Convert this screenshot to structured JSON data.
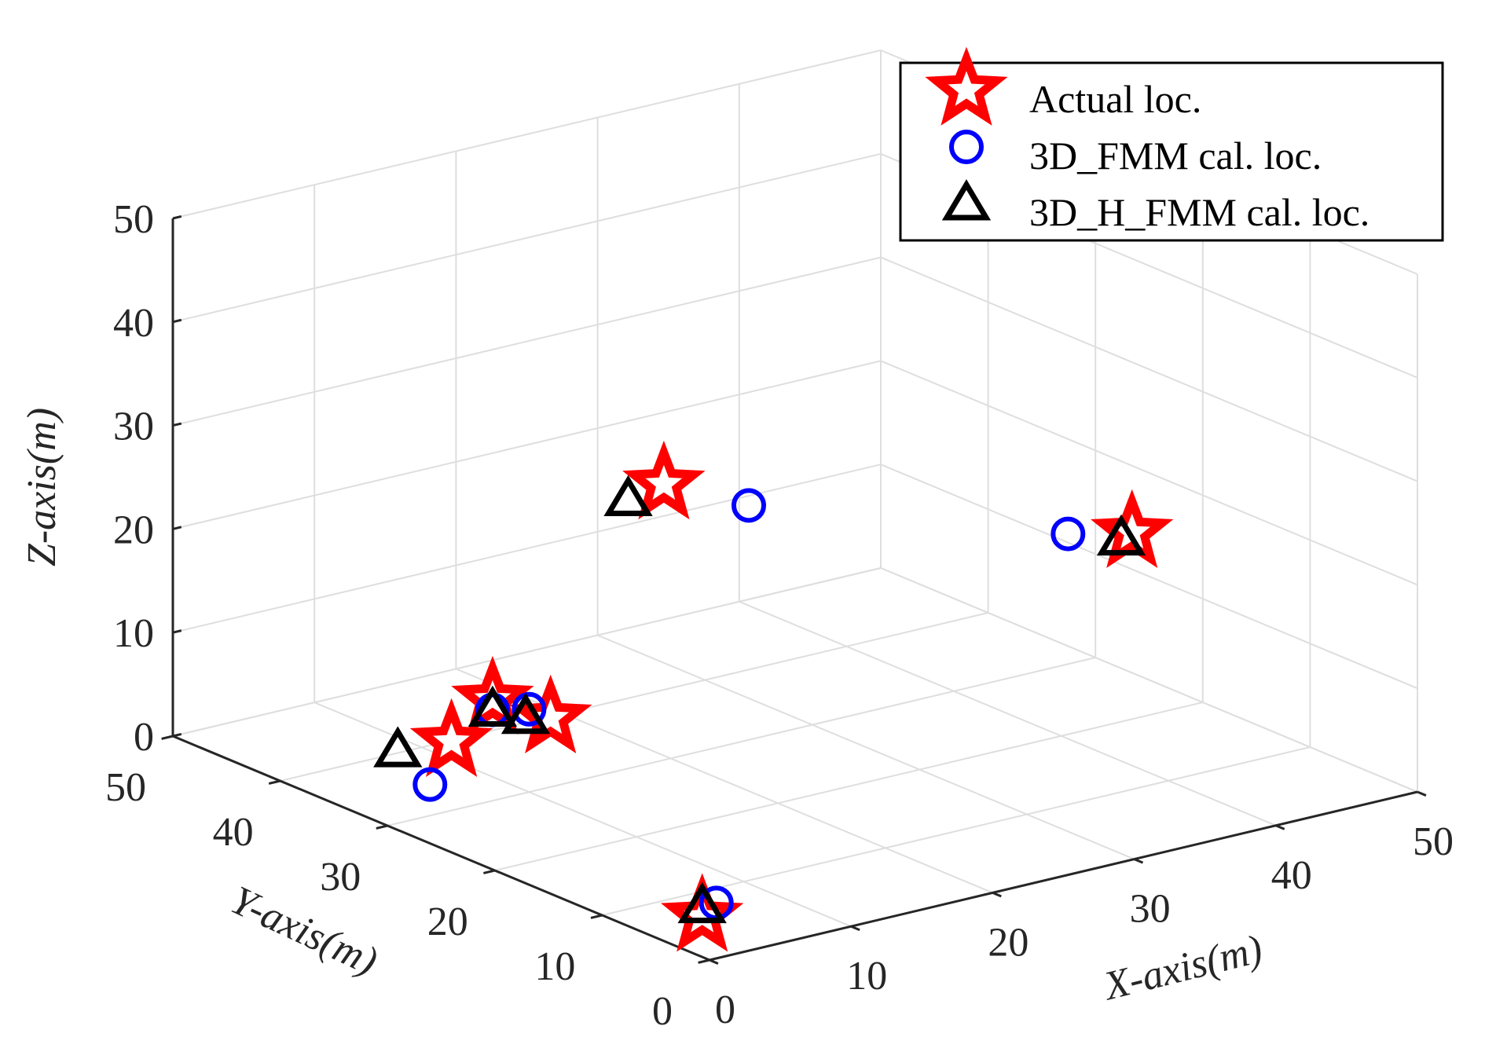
{
  "chart_data": {
    "type": "scatter3d",
    "xlabel": "X-axis(m)",
    "ylabel": "Y-axis(m)",
    "zlabel": "Z-axis(m)",
    "xlim": [
      0,
      50
    ],
    "ylim": [
      0,
      50
    ],
    "zlim": [
      0,
      50
    ],
    "xticks": [
      "0",
      "10",
      "20",
      "30",
      "40",
      "50"
    ],
    "yticks": [
      "0",
      "10",
      "20",
      "30",
      "40",
      "50"
    ],
    "zticks": [
      "0",
      "10",
      "20",
      "30",
      "40",
      "50"
    ],
    "grid": true,
    "legend_position": "top-right",
    "series": [
      {
        "name": "Actual loc.",
        "marker": "star",
        "color": "#ff0000",
        "points": [
          {
            "x": 1,
            "y": 2,
            "z": 3
          },
          {
            "x": 3,
            "y": 28,
            "z": 8
          },
          {
            "x": 10,
            "y": 28,
            "z": 8
          },
          {
            "x": 15,
            "y": 40,
            "z": 3
          },
          {
            "x": 18,
            "y": 28,
            "z": 28
          },
          {
            "x": 45,
            "y": 20,
            "z": 18
          }
        ]
      },
      {
        "name": "3D_FMM cal. loc.",
        "marker": "circle",
        "color": "#0000ff",
        "points": [
          {
            "x": 2,
            "y": 2,
            "z": 4
          },
          {
            "x": 3,
            "y": 30,
            "z": 3
          },
          {
            "x": 10,
            "y": 30,
            "z": 8
          },
          {
            "x": 15,
            "y": 40,
            "z": 2
          },
          {
            "x": 24,
            "y": 28,
            "z": 24
          },
          {
            "x": 42,
            "y": 22,
            "z": 18
          }
        ]
      },
      {
        "name": "3D_H_FMM cal. loc.",
        "marker": "triangle",
        "color": "#000000",
        "points": [
          {
            "x": 1,
            "y": 2,
            "z": 4
          },
          {
            "x": 3,
            "y": 33,
            "z": 5
          },
          {
            "x": 9,
            "y": 29,
            "z": 8
          },
          {
            "x": 15,
            "y": 40,
            "z": 2
          },
          {
            "x": 17,
            "y": 30,
            "z": 26
          },
          {
            "x": 45,
            "y": 21,
            "z": 17
          }
        ]
      }
    ]
  }
}
